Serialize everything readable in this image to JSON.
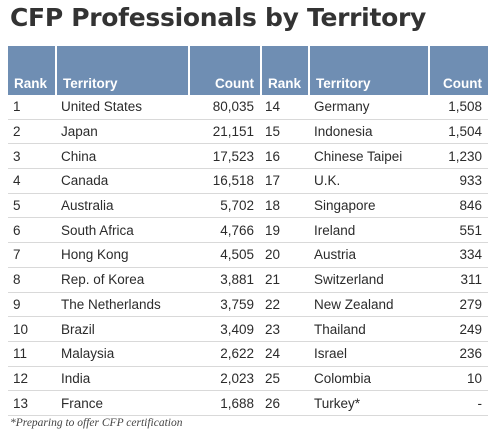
{
  "title": "CFP Professionals by Territory",
  "footnote": "*Preparing to offer CFP certification",
  "colors": {
    "header_bg": "#6f8eb3",
    "header_text": "#ffffff",
    "row_divider": "#d9d9d9"
  },
  "chart_data": {
    "type": "table",
    "title": "CFP Professionals by Territory",
    "columns": [
      "Rank",
      "Territory",
      "Count",
      "Rank",
      "Territory",
      "Count"
    ],
    "rows": [
      [
        "1",
        "United States",
        "80,035",
        "14",
        "Germany",
        "1,508"
      ],
      [
        "2",
        "Japan",
        "21,151",
        "15",
        "Indonesia",
        "1,504"
      ],
      [
        "3",
        "China",
        "17,523",
        "16",
        "Chinese Taipei",
        "1,230"
      ],
      [
        "4",
        "Canada",
        "16,518",
        "17",
        "U.K.",
        "933"
      ],
      [
        "5",
        "Australia",
        "5,702",
        "18",
        "Singapore",
        "846"
      ],
      [
        "6",
        "South Africa",
        "4,766",
        "19",
        "Ireland",
        "551"
      ],
      [
        "7",
        "Hong Kong",
        "4,505",
        "20",
        "Austria",
        "334"
      ],
      [
        "8",
        "Rep. of Korea",
        "3,881",
        "21",
        "Switzerland",
        "311"
      ],
      [
        "9",
        "The Netherlands",
        "3,759",
        "22",
        "New Zealand",
        "279"
      ],
      [
        "10",
        "Brazil",
        "3,409",
        "23",
        "Thailand",
        "249"
      ],
      [
        "11",
        "Malaysia",
        "2,622",
        "24",
        "Israel",
        "236"
      ],
      [
        "12",
        "India",
        "2,023",
        "25",
        "Colombia",
        "10"
      ],
      [
        "13",
        "France",
        "1,688",
        "26",
        "Turkey*",
        "-"
      ]
    ]
  }
}
